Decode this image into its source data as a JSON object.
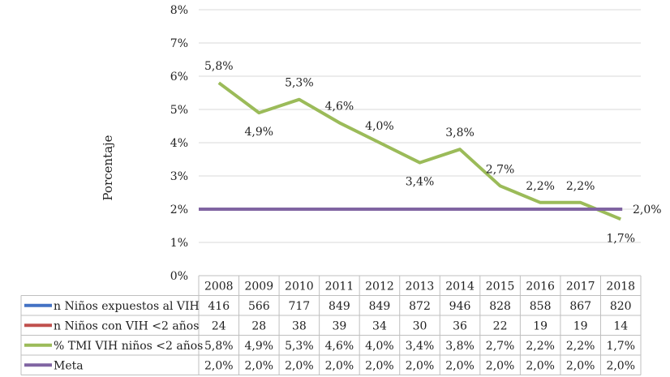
{
  "chart_data": {
    "type": "line",
    "title": "",
    "xlabel": "",
    "ylabel": "Porcentaje",
    "ylim": [
      0,
      8
    ],
    "yticks": [
      "0%",
      "1%",
      "2%",
      "3%",
      "4%",
      "5%",
      "6%",
      "7%",
      "8%"
    ],
    "categories": [
      "2008",
      "2009",
      "2010",
      "2011",
      "2012",
      "2013",
      "2014",
      "2015",
      "2016",
      "2017",
      "2018"
    ],
    "grid": true,
    "legend": "data-table-bottom",
    "series": [
      {
        "name": "n Niños  expuestos al VIH",
        "color": "#4472c4",
        "plotted": false,
        "table_values": [
          "416",
          "566",
          "717",
          "849",
          "849",
          "872",
          "946",
          "828",
          "858",
          "867",
          "820"
        ]
      },
      {
        "name": "n Niños con VIH <2 años",
        "color": "#c0504d",
        "plotted": false,
        "table_values": [
          "24",
          "28",
          "38",
          "39",
          "34",
          "30",
          "36",
          "22",
          "19",
          "19",
          "14"
        ]
      },
      {
        "name": "% TMI VIH niños  <2 años",
        "color": "#9bbb59",
        "plotted": true,
        "values": [
          5.8,
          4.9,
          5.3,
          4.6,
          4.0,
          3.4,
          3.8,
          2.7,
          2.2,
          2.2,
          1.7
        ],
        "table_values": [
          "5,8%",
          "4,9%",
          "5,3%",
          "4,6%",
          "4,0%",
          "3,4%",
          "3,8%",
          "2,7%",
          "2,2%",
          "2,2%",
          "1,7%"
        ],
        "data_labels": [
          "5,8%",
          "4,9%",
          "5,3%",
          "4,6%",
          "4,0%",
          "3,4%",
          "3,8%",
          "2,7%",
          "2,2%",
          "2,2%",
          "1,7%"
        ]
      },
      {
        "name": "Meta",
        "color": "#8064a2",
        "plotted": true,
        "values": [
          2.0,
          2.0,
          2.0,
          2.0,
          2.0,
          2.0,
          2.0,
          2.0,
          2.0,
          2.0,
          2.0
        ],
        "table_values": [
          "2,0%",
          "2,0%",
          "2,0%",
          "2,0%",
          "2,0%",
          "2,0%",
          "2,0%",
          "2,0%",
          "2,0%",
          "2,0%",
          "2,0%"
        ],
        "end_label": "2,0%"
      }
    ]
  }
}
